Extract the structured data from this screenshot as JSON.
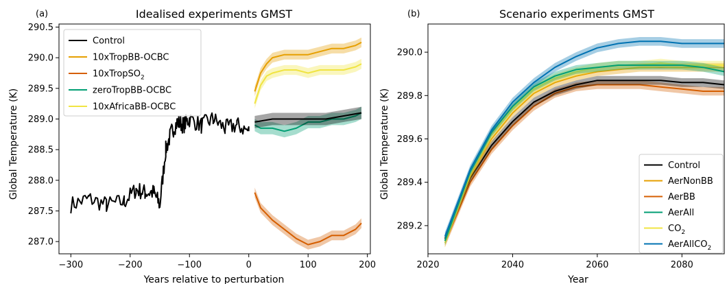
{
  "chart_data": [
    {
      "panel_label": "(a)",
      "title": "Idealised experiments GMST",
      "type": "line",
      "xlabel": "Years relative to perturbation",
      "ylabel": "Global Temperature (K)",
      "xlim": [
        -320,
        205
      ],
      "ylim": [
        286.8,
        290.55
      ],
      "xticks": [
        -300,
        -200,
        -100,
        0,
        100,
        200
      ],
      "xtick_labels": [
        "−300",
        "−200",
        "−100",
        "0",
        "100",
        "200"
      ],
      "yticks": [
        287.0,
        287.5,
        288.0,
        288.5,
        289.0,
        289.5,
        290.0,
        290.5
      ],
      "ytick_labels": [
        "287.0",
        "287.5",
        "288.0",
        "288.5",
        "289.0",
        "289.5",
        "290.0",
        "290.5"
      ],
      "legend_position": "upper-left",
      "legend": [
        {
          "label": "Control",
          "color": "#000000"
        },
        {
          "label": "10xTropBB-OCBC",
          "color": "#E69F00"
        },
        {
          "label": "10xTropSO",
          "sub": "2",
          "color": "#D55E00"
        },
        {
          "label": "zeroTropBB-OCBC",
          "color": "#009E73"
        },
        {
          "label": "10xAfricaBB-OCBC",
          "color": "#F0E442"
        }
      ],
      "series": [
        {
          "name": "Control",
          "color": "#000000",
          "x": [
            -300,
            -270,
            -240,
            -210,
            -190,
            -175,
            -160,
            -150,
            -140,
            -130,
            -120,
            -110,
            -100,
            -80,
            -60,
            -40,
            -20,
            0
          ],
          "y": [
            287.6,
            287.7,
            287.6,
            287.65,
            287.85,
            287.8,
            287.8,
            287.6,
            288.5,
            288.8,
            288.95,
            288.9,
            289.0,
            288.9,
            289.0,
            288.85,
            288.9,
            288.8
          ]
        },
        {
          "name": "10xTropBB-OCBC",
          "color": "#E69F00",
          "band": 0.08,
          "x": [
            10,
            20,
            30,
            40,
            60,
            80,
            100,
            120,
            140,
            160,
            180,
            190
          ],
          "y": [
            289.45,
            289.75,
            289.9,
            290.0,
            290.05,
            290.05,
            290.05,
            290.1,
            290.15,
            290.15,
            290.2,
            290.25
          ]
        },
        {
          "name": "10xAfricaBB-OCBC",
          "color": "#F0E442",
          "band": 0.08,
          "x": [
            10,
            20,
            30,
            40,
            60,
            80,
            100,
            120,
            140,
            160,
            180,
            190
          ],
          "y": [
            289.25,
            289.55,
            289.7,
            289.75,
            289.8,
            289.8,
            289.75,
            289.8,
            289.8,
            289.8,
            289.85,
            289.9
          ]
        },
        {
          "name": "zeroTropBB-OCBC",
          "color": "#009E73",
          "band": 0.1,
          "x": [
            10,
            20,
            40,
            60,
            80,
            100,
            120,
            140,
            160,
            180,
            190
          ],
          "y": [
            288.9,
            288.85,
            288.85,
            288.8,
            288.85,
            288.95,
            288.95,
            289.0,
            289.0,
            289.05,
            289.1
          ]
        },
        {
          "name": "control continuation",
          "color": "#000000",
          "band": 0.1,
          "x": [
            10,
            40,
            70,
            100,
            130,
            160,
            190
          ],
          "y": [
            288.95,
            289.0,
            289.0,
            289.0,
            289.0,
            289.05,
            289.1
          ]
        },
        {
          "name": "10xTropSO2",
          "color": "#D55E00",
          "band": 0.08,
          "x": [
            10,
            20,
            40,
            60,
            80,
            100,
            120,
            140,
            160,
            180,
            190
          ],
          "y": [
            287.8,
            287.55,
            287.35,
            287.2,
            287.05,
            286.95,
            287.0,
            287.1,
            287.1,
            287.2,
            287.3
          ]
        }
      ]
    },
    {
      "panel_label": "(b)",
      "title": "Scenario experiments GMST",
      "type": "line",
      "xlabel": "Year",
      "ylabel": "Global Temperature (K)",
      "xlim": [
        2020,
        2090
      ],
      "ylim": [
        289.07,
        290.13
      ],
      "xticks": [
        2020,
        2040,
        2060,
        2080
      ],
      "xtick_labels": [
        "2020",
        "2040",
        "2060",
        "2080"
      ],
      "yticks": [
        289.2,
        289.4,
        289.6,
        289.8,
        290.0
      ],
      "ytick_labels": [
        "289.2",
        "289.4",
        "289.6",
        "289.8",
        "290.0"
      ],
      "legend_position": "lower-right",
      "legend": [
        {
          "label": "Control",
          "color": "#000000"
        },
        {
          "label": "AerNonBB",
          "color": "#E69F00"
        },
        {
          "label": "AerBB",
          "color": "#D55E00"
        },
        {
          "label": "AerAll",
          "color": "#009E73"
        },
        {
          "label": "CO",
          "sub": "2",
          "color": "#F0E442"
        },
        {
          "label": "AerAllCO",
          "sub": "2",
          "color": "#0072B2"
        }
      ],
      "series": [
        {
          "name": "AerBB",
          "color": "#D55E00",
          "band": 0.02,
          "x": [
            2024,
            2030,
            2035,
            2040,
            2045,
            2050,
            2055,
            2060,
            2065,
            2070,
            2075,
            2080,
            2085,
            2090
          ],
          "y": [
            289.12,
            289.4,
            289.55,
            289.66,
            289.75,
            289.81,
            289.84,
            289.85,
            289.85,
            289.85,
            289.84,
            289.83,
            289.82,
            289.82
          ]
        },
        {
          "name": "Control",
          "color": "#000000",
          "band": 0.02,
          "x": [
            2024,
            2030,
            2035,
            2040,
            2045,
            2050,
            2055,
            2060,
            2065,
            2070,
            2075,
            2080,
            2085,
            2090
          ],
          "y": [
            289.14,
            289.42,
            289.57,
            289.68,
            289.77,
            289.82,
            289.85,
            289.87,
            289.87,
            289.87,
            289.87,
            289.86,
            289.86,
            289.85
          ]
        },
        {
          "name": "AerNonBB",
          "color": "#E69F00",
          "band": 0.02,
          "x": [
            2024,
            2030,
            2035,
            2040,
            2045,
            2050,
            2055,
            2060,
            2065,
            2070,
            2075,
            2080,
            2085,
            2090
          ],
          "y": [
            289.13,
            289.43,
            289.6,
            289.72,
            289.81,
            289.86,
            289.89,
            289.91,
            289.92,
            289.93,
            289.93,
            289.93,
            289.93,
            289.93
          ]
        },
        {
          "name": "CO2",
          "color": "#F0E442",
          "band": 0.02,
          "x": [
            2024,
            2030,
            2035,
            2040,
            2045,
            2050,
            2055,
            2060,
            2065,
            2070,
            2075,
            2080,
            2085,
            2090
          ],
          "y": [
            289.12,
            289.44,
            289.62,
            289.74,
            289.83,
            289.88,
            289.91,
            289.93,
            289.94,
            289.94,
            289.95,
            289.94,
            289.94,
            289.94
          ]
        },
        {
          "name": "AerAll",
          "color": "#009E73",
          "band": 0.02,
          "x": [
            2024,
            2030,
            2035,
            2040,
            2045,
            2050,
            2055,
            2060,
            2065,
            2070,
            2075,
            2080,
            2085,
            2090
          ],
          "y": [
            289.13,
            289.45,
            289.63,
            289.75,
            289.84,
            289.89,
            289.92,
            289.93,
            289.94,
            289.94,
            289.94,
            289.94,
            289.93,
            289.91
          ]
        },
        {
          "name": "AerAllCO2",
          "color": "#0072B2",
          "band": 0.02,
          "x": [
            2024,
            2030,
            2035,
            2040,
            2045,
            2050,
            2055,
            2060,
            2065,
            2070,
            2075,
            2080,
            2085,
            2090
          ],
          "y": [
            289.15,
            289.46,
            289.64,
            289.77,
            289.86,
            289.93,
            289.98,
            290.02,
            290.04,
            290.05,
            290.05,
            290.04,
            290.04,
            290.04
          ]
        }
      ]
    }
  ]
}
